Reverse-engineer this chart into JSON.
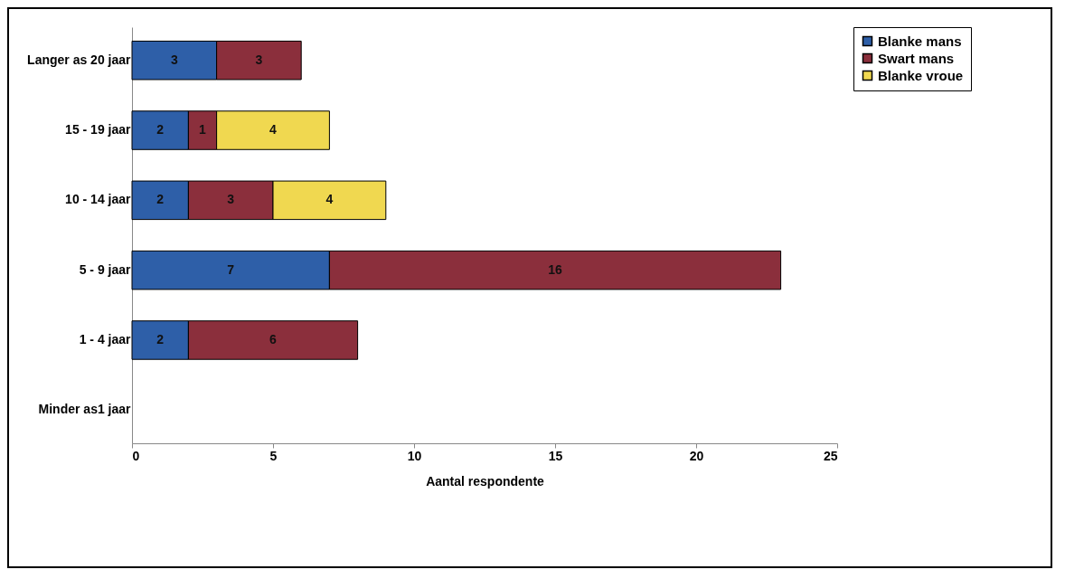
{
  "chart_data": {
    "type": "bar",
    "orientation": "horizontal",
    "stacked": true,
    "categories": [
      "Langer as 20 jaar",
      "15 - 19 jaar",
      "10 - 14 jaar",
      "5 - 9 jaar",
      "1 - 4 jaar",
      "Minder as1 jaar"
    ],
    "series": [
      {
        "name": "Blanke mans",
        "color": "#2e5fa8",
        "values": [
          3,
          2,
          2,
          7,
          2,
          null
        ]
      },
      {
        "name": "Swart mans",
        "color": "#8b2f3c",
        "values": [
          3,
          1,
          3,
          16,
          6,
          null
        ]
      },
      {
        "name": "Blanke vroue",
        "color": "#f0d850",
        "values": [
          null,
          4,
          4,
          null,
          null,
          null
        ]
      }
    ],
    "xlabel": "Aantal respondente",
    "xlim": [
      0,
      25
    ],
    "xticks": [
      0,
      5,
      10,
      15,
      20,
      25
    ],
    "grid": false,
    "legend": "right",
    "data_labels": true
  }
}
